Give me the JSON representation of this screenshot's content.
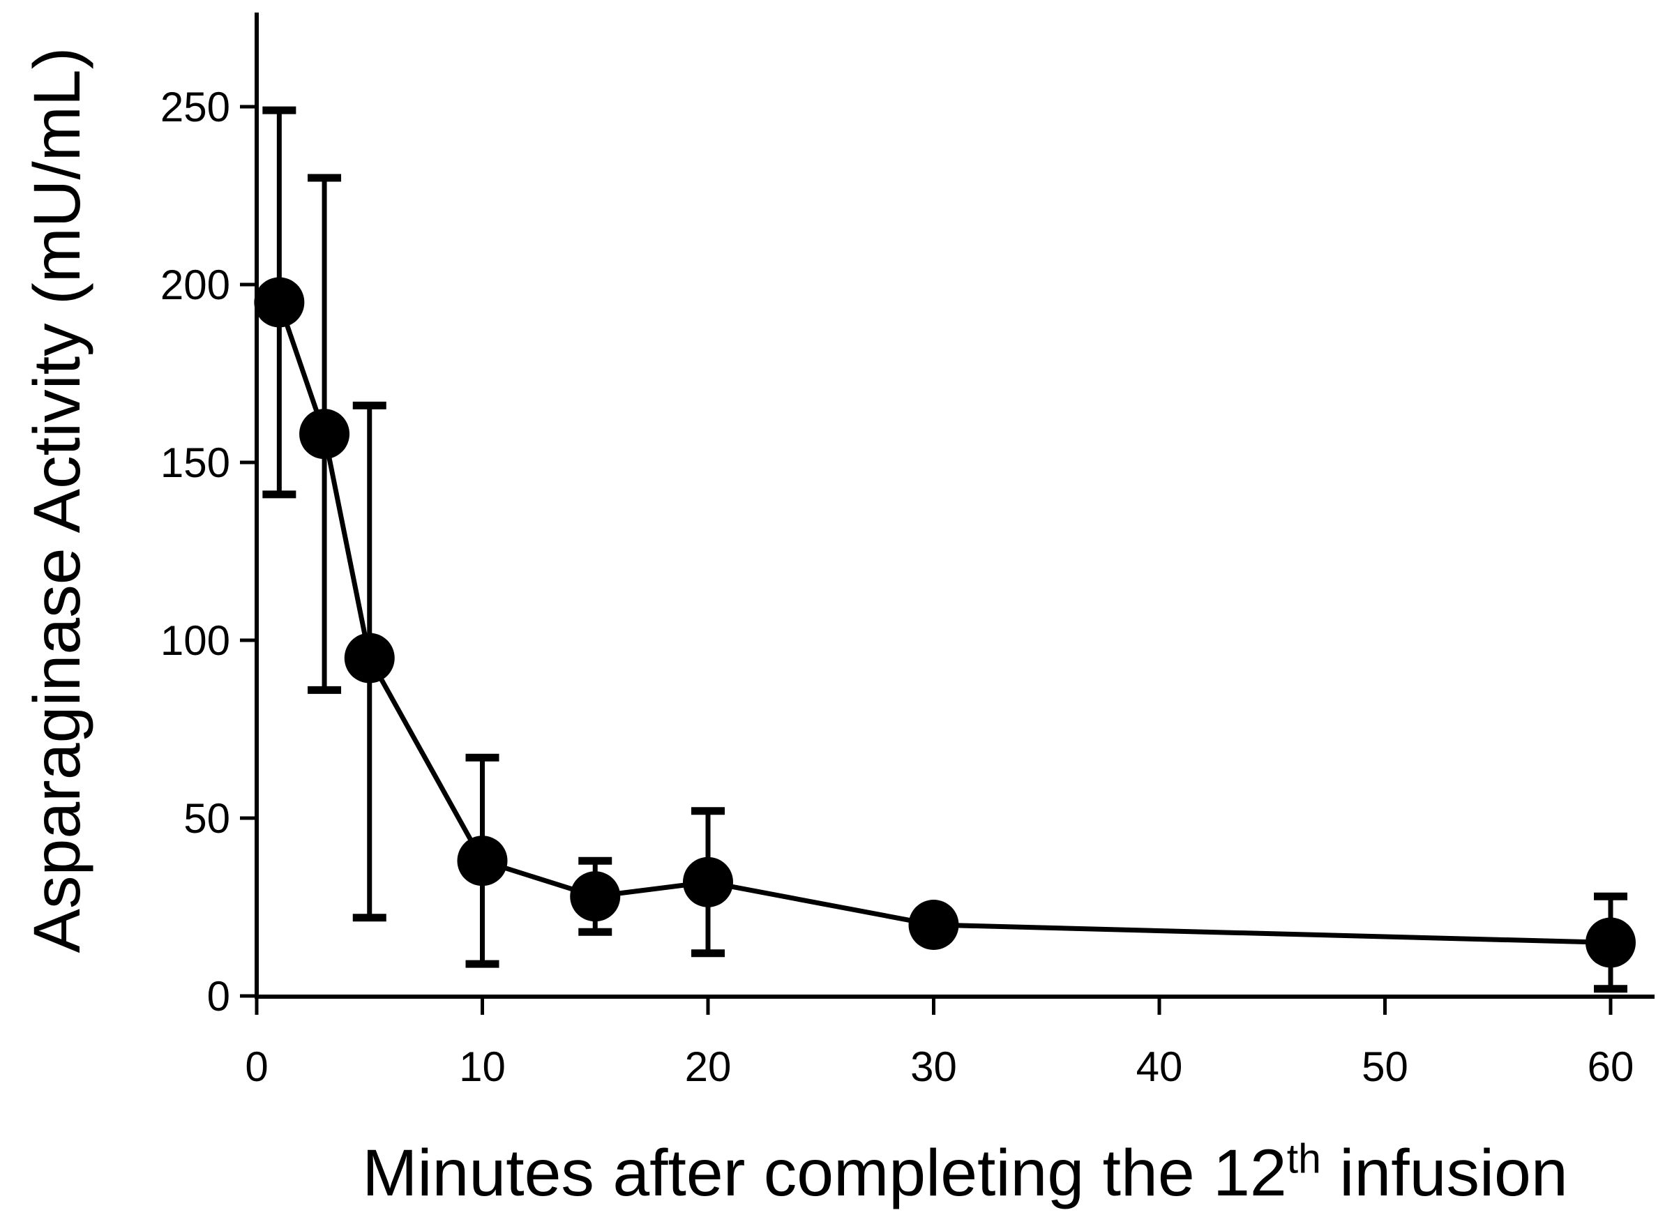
{
  "chart_data": {
    "type": "line",
    "title": "",
    "xlabel_before_sup": "Minutes after completing the 12",
    "xlabel_sup": "th",
    "xlabel_after_sup": " infusion",
    "ylabel": "Asparaginase Activity (mU/mL)",
    "x": [
      1,
      3,
      5,
      10,
      15,
      20,
      30,
      60
    ],
    "series": [
      {
        "values": [
          195,
          158,
          95,
          38,
          28,
          32,
          20,
          15
        ],
        "error_low": [
          141,
          86,
          22,
          9,
          18,
          12,
          null,
          2
        ],
        "error_high": [
          249,
          230,
          166,
          67,
          38,
          52,
          null,
          28
        ]
      }
    ],
    "xticks": [
      0,
      10,
      20,
      30,
      40,
      50,
      60
    ],
    "yticks": [
      0,
      50,
      100,
      150,
      200,
      250
    ],
    "xlim": [
      0,
      62
    ],
    "ylim": [
      0,
      277
    ],
    "grid": false,
    "legend_position": "none",
    "marker": "filled-circle",
    "line_color": "#000000",
    "marker_color": "#000000",
    "axis_color": "#000000",
    "background": "#ffffff"
  }
}
